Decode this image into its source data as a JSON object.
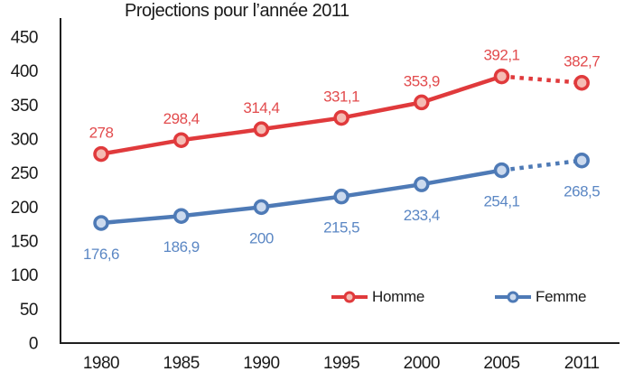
{
  "chart_data": {
    "type": "line",
    "title": "Projections pour l’année 2011",
    "categories": [
      "1980",
      "1985",
      "1990",
      "1995",
      "2000",
      "2005",
      "2011"
    ],
    "y_ticks": [
      450,
      400,
      350,
      300,
      250,
      200,
      150,
      100,
      50,
      0
    ],
    "ylim": [
      0,
      450
    ],
    "grid": false,
    "legend_position": "bottom-inside",
    "axis_color": "#1f1f1f",
    "tick_label_color": "#1a1a1a",
    "series": [
      {
        "name": "Homme",
        "color": "#e03a3c",
        "marker_fill": "#f5bcb4",
        "label_color": "#e24b4d",
        "values": [
          278,
          298.4,
          314.4,
          331.1,
          353.9,
          392.1,
          382.7
        ],
        "labels": [
          "278",
          "298,4",
          "314,4",
          "331,1",
          "353,9",
          "392,1",
          "382,7"
        ],
        "dashed_after_index": 5,
        "label_position": "above"
      },
      {
        "name": "Femme",
        "color": "#4e7ab6",
        "marker_fill": "#ccdaee",
        "label_color": "#5b87c4",
        "values": [
          176.6,
          186.9,
          200,
          215.5,
          233.4,
          254.1,
          268.5
        ],
        "labels": [
          "176,6",
          "186,9",
          "200",
          "215,5",
          "233,4",
          "254,1",
          "268,5"
        ],
        "dashed_after_index": 5,
        "label_position": "below"
      }
    ]
  }
}
